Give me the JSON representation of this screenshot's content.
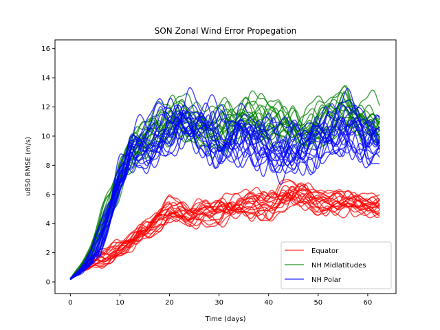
{
  "chart_data": {
    "type": "line",
    "title": "SON Zonal Wind Error Propegation",
    "xlabel": "Time (days)",
    "ylabel": "u850 RMSE (m/s)",
    "xlim": [
      -3.1,
      65.7
    ],
    "ylim": [
      -0.8,
      16.6
    ],
    "xticks": [
      0,
      10,
      20,
      30,
      40,
      50,
      60
    ],
    "yticks": [
      0,
      2,
      4,
      6,
      8,
      10,
      12,
      14,
      16
    ],
    "grid": false,
    "legend_position": "lower right",
    "ensemble_members_per_series": 20,
    "x": [
      0,
      2,
      4,
      6,
      8,
      10,
      12,
      14,
      16,
      18,
      20,
      22,
      24,
      26,
      28,
      30,
      32,
      34,
      36,
      38,
      40,
      42,
      44,
      46,
      48,
      50,
      52,
      54,
      56,
      58,
      60,
      62
    ],
    "series": [
      {
        "name": "Equator",
        "color": "#ff0000",
        "values": [
          0.2,
          0.8,
          1.2,
          1.6,
          1.9,
          2.2,
          2.7,
          3.2,
          3.7,
          4.4,
          5.0,
          4.8,
          4.5,
          4.6,
          4.7,
          4.9,
          5.1,
          5.3,
          5.4,
          5.3,
          5.2,
          5.5,
          5.9,
          6.0,
          5.8,
          5.6,
          5.5,
          5.4,
          5.4,
          5.3,
          5.2,
          5.3
        ],
        "band": [
          0.1,
          0.3,
          0.5,
          0.6,
          0.6,
          0.7,
          0.7,
          0.8,
          0.8,
          0.9,
          0.9,
          0.9,
          0.9,
          0.9,
          0.9,
          1.0,
          1.0,
          1.1,
          1.1,
          1.0,
          1.0,
          1.1,
          1.2,
          1.1,
          1.0,
          1.0,
          0.9,
          0.9,
          0.9,
          0.9,
          0.8,
          0.8
        ]
      },
      {
        "name": "NH Midlatitudes",
        "color": "#008000",
        "values": [
          0.2,
          1.0,
          2.0,
          3.6,
          5.4,
          7.5,
          9.2,
          9.8,
          10.2,
          10.7,
          11.2,
          11.4,
          11.2,
          10.8,
          10.6,
          10.7,
          11.0,
          11.3,
          11.5,
          11.2,
          11.0,
          11.1,
          10.8,
          10.5,
          10.6,
          11.0,
          11.4,
          11.7,
          11.8,
          11.5,
          11.2,
          11.0
        ],
        "band": [
          0.1,
          0.4,
          0.7,
          1.0,
          1.3,
          1.5,
          1.6,
          1.6,
          1.6,
          1.7,
          1.7,
          1.7,
          1.7,
          1.7,
          1.7,
          1.8,
          1.8,
          1.8,
          1.8,
          1.8,
          1.8,
          1.8,
          1.8,
          1.8,
          1.7,
          1.7,
          1.8,
          1.8,
          1.8,
          1.7,
          1.7,
          1.7
        ]
      },
      {
        "name": "NH Polar",
        "color": "#0000ff",
        "values": [
          0.2,
          0.7,
          1.5,
          2.8,
          4.8,
          7.0,
          8.6,
          9.2,
          9.6,
          10.0,
          10.4,
          10.6,
          10.8,
          10.7,
          10.2,
          9.6,
          9.4,
          9.8,
          10.0,
          9.6,
          9.3,
          9.0,
          8.8,
          9.0,
          9.4,
          9.8,
          10.1,
          10.3,
          10.4,
          10.2,
          9.8,
          9.6
        ],
        "band": [
          0.1,
          0.4,
          0.8,
          1.2,
          1.5,
          1.8,
          2.0,
          2.1,
          2.1,
          2.2,
          2.2,
          2.3,
          2.3,
          2.3,
          2.3,
          2.3,
          2.3,
          2.3,
          2.3,
          2.3,
          2.3,
          2.3,
          2.3,
          2.3,
          2.3,
          2.3,
          2.3,
          2.3,
          2.3,
          2.3,
          2.3,
          2.3
        ]
      }
    ]
  }
}
